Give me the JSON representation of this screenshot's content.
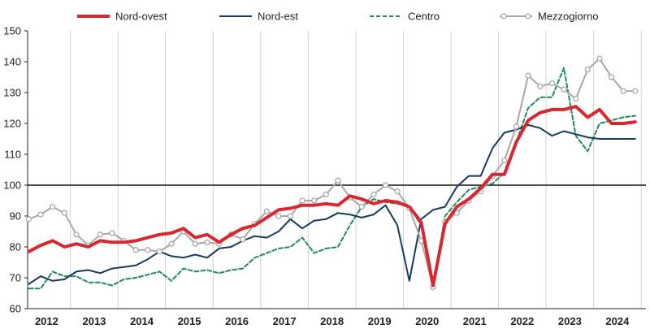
{
  "chart_data": {
    "type": "line",
    "title": "",
    "xlabel": "",
    "ylabel": "",
    "ylim": [
      60,
      150
    ],
    "yticks": [
      60,
      70,
      80,
      90,
      100,
      110,
      120,
      130,
      140,
      150
    ],
    "xlim": [
      2011.6,
      2024.6
    ],
    "xticks": [
      "2012",
      "2013",
      "2014",
      "2015",
      "2016",
      "2017",
      "2018",
      "2019",
      "2020",
      "2021",
      "2022",
      "2023",
      "2024"
    ],
    "reference_line": 100,
    "grid": "vertical",
    "legend_position": "top",
    "series": [
      {
        "name": "Nord-ovest",
        "color": "#d7282f",
        "style": "solid-thick",
        "x": [
          2011.625,
          2011.875,
          2012.125,
          2012.375,
          2012.625,
          2012.875,
          2013.125,
          2013.375,
          2013.625,
          2013.875,
          2014.125,
          2014.375,
          2014.625,
          2014.875,
          2015.125,
          2015.375,
          2015.625,
          2015.875,
          2016.125,
          2016.375,
          2016.625,
          2016.875,
          2017.125,
          2017.375,
          2017.625,
          2017.875,
          2018.125,
          2018.375,
          2018.625,
          2018.875,
          2019.125,
          2019.375,
          2019.625,
          2019.875,
          2020.125,
          2020.375,
          2020.625,
          2020.875,
          2021.125,
          2021.375,
          2021.625,
          2021.875,
          2022.125,
          2022.375,
          2022.625,
          2022.875,
          2023.125,
          2023.375,
          2023.625,
          2023.875,
          2024.125,
          2024.375
        ],
        "values": [
          78.5,
          80.5,
          82,
          80,
          81,
          80,
          82,
          81.5,
          81.5,
          82,
          83,
          84,
          84.5,
          86,
          83,
          84,
          81.5,
          84,
          86,
          87,
          89.5,
          92,
          92.5,
          93.5,
          93.5,
          94,
          93.5,
          96.5,
          95.5,
          94,
          95,
          94.5,
          93,
          88,
          67.5,
          87.5,
          93,
          95.5,
          99,
          103.5,
          103.5,
          114,
          121,
          123.5,
          124.5,
          124.5,
          125.5,
          122,
          124.5,
          120,
          120,
          120.5
        ]
      },
      {
        "name": "Nord-est",
        "color": "#183a5e",
        "style": "solid",
        "x": [
          2011.625,
          2011.875,
          2012.125,
          2012.375,
          2012.625,
          2012.875,
          2013.125,
          2013.375,
          2013.625,
          2013.875,
          2014.125,
          2014.375,
          2014.625,
          2014.875,
          2015.125,
          2015.375,
          2015.625,
          2015.875,
          2016.125,
          2016.375,
          2016.625,
          2016.875,
          2017.125,
          2017.375,
          2017.625,
          2017.875,
          2018.125,
          2018.375,
          2018.625,
          2018.875,
          2019.125,
          2019.375,
          2019.625,
          2019.875,
          2020.125,
          2020.375,
          2020.625,
          2020.875,
          2021.125,
          2021.375,
          2021.625,
          2021.875,
          2022.125,
          2022.375,
          2022.625,
          2022.875,
          2023.125,
          2023.375,
          2023.625,
          2023.875,
          2024.125,
          2024.375
        ],
        "values": [
          68,
          70.5,
          69,
          69.5,
          72,
          72.5,
          71.5,
          73,
          73.5,
          74,
          76,
          78.5,
          77,
          76.5,
          77.5,
          76.5,
          79.5,
          80,
          82,
          83.5,
          83,
          85,
          89,
          86,
          88.5,
          89,
          91,
          90.5,
          89.5,
          90.5,
          93.5,
          87,
          69,
          89,
          92,
          93,
          99.5,
          103,
          103,
          112,
          117,
          118,
          119.5,
          118.5,
          116,
          117.5,
          116.5,
          115.5,
          115,
          115,
          115,
          115
        ]
      },
      {
        "name": "Centro",
        "color": "#1e8a5e",
        "style": "dashed",
        "x": [
          2011.625,
          2011.875,
          2012.125,
          2012.375,
          2012.625,
          2012.875,
          2013.125,
          2013.375,
          2013.625,
          2013.875,
          2014.125,
          2014.375,
          2014.625,
          2014.875,
          2015.125,
          2015.375,
          2015.625,
          2015.875,
          2016.125,
          2016.375,
          2016.625,
          2016.875,
          2017.125,
          2017.375,
          2017.625,
          2017.875,
          2018.125,
          2018.375,
          2018.625,
          2018.875,
          2019.125,
          2019.375,
          2019.625,
          2019.875,
          2020.125,
          2020.375,
          2020.625,
          2020.875,
          2021.125,
          2021.375,
          2021.625,
          2021.875,
          2022.125,
          2022.375,
          2022.625,
          2022.875,
          2023.125,
          2023.375,
          2023.625,
          2023.875,
          2024.125,
          2024.375
        ],
        "values": [
          66.5,
          66.5,
          72,
          70.5,
          70.5,
          68.5,
          68.5,
          67.5,
          69.5,
          70,
          71,
          72,
          69,
          73,
          72,
          72.5,
          71.5,
          72.5,
          73,
          76.5,
          78,
          79.5,
          80,
          83,
          78,
          79.5,
          80,
          87,
          93,
          95.5,
          94.5,
          94,
          93,
          87,
          67,
          90,
          94.5,
          98.5,
          99.5,
          100.5,
          104,
          114,
          125,
          128.5,
          128.5,
          138,
          116,
          111,
          120,
          121,
          122,
          122.5
        ]
      },
      {
        "name": "Mezzogiorno",
        "color": "#a8a8a8",
        "style": "solid-markers",
        "x": [
          2011.625,
          2011.875,
          2012.125,
          2012.375,
          2012.625,
          2012.875,
          2013.125,
          2013.375,
          2013.625,
          2013.875,
          2014.125,
          2014.375,
          2014.625,
          2014.875,
          2015.125,
          2015.375,
          2015.625,
          2015.875,
          2016.125,
          2016.375,
          2016.625,
          2016.875,
          2017.125,
          2017.375,
          2017.625,
          2017.875,
          2018.125,
          2018.375,
          2018.625,
          2018.875,
          2019.125,
          2019.375,
          2019.625,
          2019.875,
          2020.125,
          2020.375,
          2020.625,
          2020.875,
          2021.125,
          2021.375,
          2021.625,
          2021.875,
          2022.125,
          2022.375,
          2022.625,
          2022.875,
          2023.125,
          2023.375,
          2023.625,
          2023.875,
          2024.125,
          2024.375
        ],
        "values": [
          89,
          90.5,
          93,
          91,
          84,
          80.5,
          84,
          84.5,
          82,
          79,
          79,
          78.5,
          81,
          85,
          81,
          81.5,
          81,
          84,
          82.5,
          87.5,
          91.5,
          90,
          90,
          95,
          95,
          97,
          101.5,
          96,
          93,
          97,
          100,
          98,
          92.5,
          82,
          67,
          88,
          91,
          95,
          98,
          103,
          108,
          119,
          135.5,
          132,
          133,
          131,
          128,
          137.5,
          141,
          135,
          130.5,
          130.5
        ]
      }
    ]
  }
}
